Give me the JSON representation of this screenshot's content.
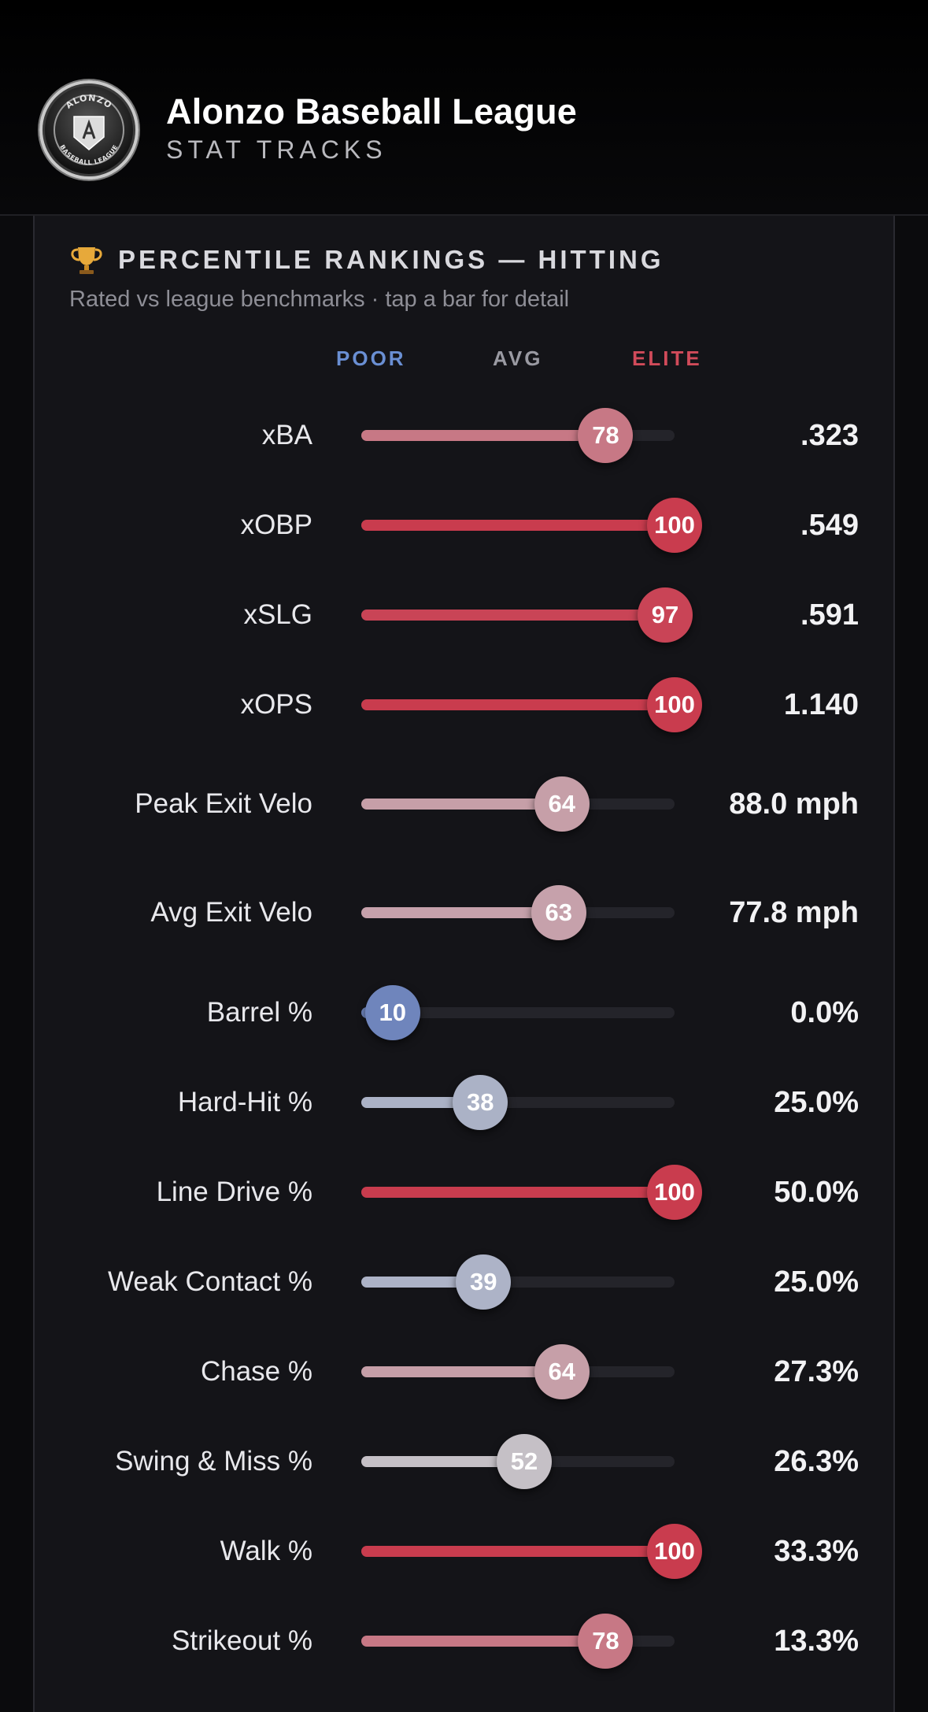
{
  "header": {
    "title": "Alonzo Baseball League",
    "subtitle": "STAT TRACKS",
    "logo_text_top": "ALONZO",
    "logo_text_bottom": "BASEBALL LEAGUE"
  },
  "card": {
    "title": "PERCENTILE RANKINGS — HITTING",
    "subtitle": "Rated vs league benchmarks · tap a bar for detail",
    "legend": {
      "poor": "POOR",
      "avg": "AVG",
      "elite": "ELITE"
    }
  },
  "colors": {
    "poor": "#5a75b8",
    "elite": "#c93c4e",
    "avg": "#c5c5cb",
    "track": "#24242a"
  },
  "rows": [
    {
      "label": "xBA",
      "percentile": 78,
      "value": ".323"
    },
    {
      "label": "xOBP",
      "percentile": 100,
      "value": ".549"
    },
    {
      "label": "xSLG",
      "percentile": 97,
      "value": ".591"
    },
    {
      "label": "xOPS",
      "percentile": 100,
      "value": "1.140"
    },
    {
      "label": "Peak Exit Velo",
      "percentile": 64,
      "value": "88.0 mph"
    },
    {
      "label": "Avg Exit Velo",
      "percentile": 63,
      "value": "77.8 mph"
    },
    {
      "label": "Barrel %",
      "percentile": 10,
      "value": "0.0%"
    },
    {
      "label": "Hard-Hit %",
      "percentile": 38,
      "value": "25.0%"
    },
    {
      "label": "Line Drive %",
      "percentile": 100,
      "value": "50.0%"
    },
    {
      "label": "Weak Contact %",
      "percentile": 39,
      "value": "25.0%"
    },
    {
      "label": "Chase %",
      "percentile": 64,
      "value": "27.3%"
    },
    {
      "label": "Swing & Miss %",
      "percentile": 52,
      "value": "26.3%"
    },
    {
      "label": "Walk %",
      "percentile": 100,
      "value": "33.3%"
    },
    {
      "label": "Strikeout %",
      "percentile": 78,
      "value": "13.3%"
    }
  ]
}
